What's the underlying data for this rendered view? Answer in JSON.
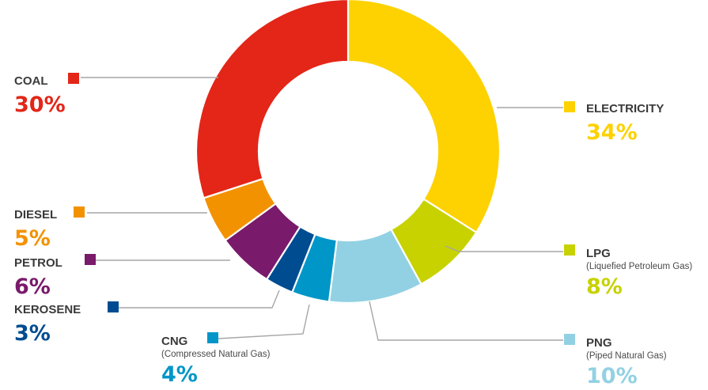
{
  "chart_data": {
    "type": "pie",
    "variant": "donut",
    "unit": "%",
    "slices": [
      {
        "name": "ELECTRICITY",
        "subtitle": "",
        "value": 34,
        "label": "34%",
        "color": "#FDD200"
      },
      {
        "name": "LPG",
        "subtitle": "(Liquefied Petroleum Gas)",
        "value": 8,
        "label": "8%",
        "color": "#C7D200"
      },
      {
        "name": "PNG",
        "subtitle": "(Piped Natural Gas)",
        "value": 10,
        "label": "10%",
        "color": "#92D1E3"
      },
      {
        "name": "CNG",
        "subtitle": "(Compressed Natural Gas)",
        "value": 4,
        "label": "4%",
        "color": "#0096C8"
      },
      {
        "name": "KEROSENE",
        "subtitle": "",
        "value": 3,
        "label": "3%",
        "color": "#004C91"
      },
      {
        "name": "PETROL",
        "subtitle": "",
        "value": 6,
        "label": "6%",
        "color": "#7A1A6B"
      },
      {
        "name": "DIESEL",
        "subtitle": "",
        "value": 5,
        "label": "5%",
        "color": "#F39200"
      },
      {
        "name": "COAL",
        "subtitle": "",
        "value": 30,
        "label": "30%",
        "color": "#E32618"
      }
    ],
    "legend_placement": "around"
  }
}
